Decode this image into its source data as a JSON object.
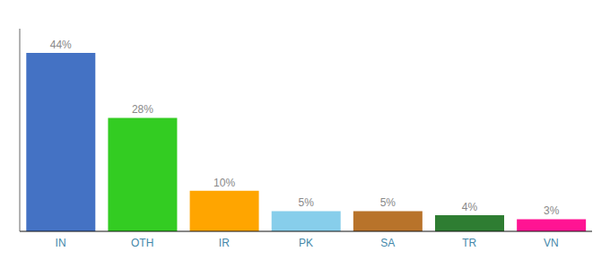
{
  "chart_data": {
    "type": "bar",
    "categories": [
      "IN",
      "OTH",
      "IR",
      "PK",
      "SA",
      "TR",
      "VN"
    ],
    "values": [
      44,
      28,
      10,
      5,
      5,
      4,
      3
    ],
    "value_labels": [
      "44%",
      "28%",
      "10%",
      "5%",
      "5%",
      "4%",
      "3%"
    ],
    "colors": [
      "#4472C4",
      "#33CC22",
      "#FFA500",
      "#87CEEB",
      "#B8732A",
      "#2E7D32",
      "#FF1493"
    ],
    "ylim": [
      0,
      50
    ],
    "data_labels": true,
    "tick_labels": "x"
  }
}
